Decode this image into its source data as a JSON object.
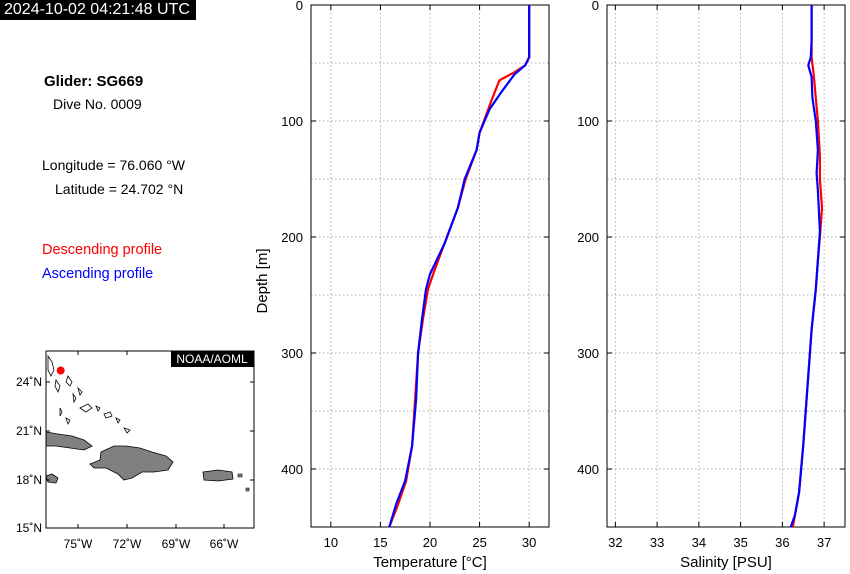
{
  "timestamp": "2024-10-02 04:21:48 UTC",
  "glider": {
    "name": "Glider: SG669",
    "dive": "Dive No. 0009",
    "longitude": "Longitude = 76.060 °W",
    "latitude": "Latitude = 24.702 °N"
  },
  "legend": {
    "descending": "Descending profile",
    "ascending": "Ascending profile",
    "descending_color": "#ff0000",
    "ascending_color": "#0000ff"
  },
  "map": {
    "badge": "NOAA/AOML",
    "lat_ticks": [
      "24˚N",
      "21˚N",
      "18˚N",
      "15˚N"
    ],
    "lon_ticks": [
      "75˚W",
      "72˚W",
      "69˚W",
      "66˚W"
    ],
    "glider_marker": {
      "lon": -76.06,
      "lat": 24.702,
      "color": "#ff0000"
    },
    "land_color": "#808080"
  },
  "chart_data": [
    {
      "type": "line",
      "xlabel": "Temperature [°C]",
      "ylabel": "Depth [m]",
      "xlim": [
        8,
        32
      ],
      "ylim": [
        450,
        0
      ],
      "x_ticks": [
        "10",
        "15",
        "20",
        "25",
        "30"
      ],
      "y_ticks": [
        "0",
        "100",
        "200",
        "300",
        "400"
      ],
      "grid": true,
      "series": [
        {
          "name": "Descending profile",
          "color": "#ff0000",
          "x": [
            30.0,
            30.0,
            30.0,
            29.6,
            28.5,
            27.0,
            26.3,
            25.0,
            24.7,
            23.6,
            22.8,
            21.7,
            20.4,
            19.8,
            19.3,
            18.8,
            18.5,
            18.2,
            17.6,
            16.8,
            15.9
          ],
          "y": [
            0,
            25,
            45,
            52,
            58,
            65,
            80,
            110,
            125,
            150,
            175,
            200,
            230,
            245,
            270,
            300,
            340,
            380,
            410,
            430,
            450
          ]
        },
        {
          "name": "Ascending profile",
          "color": "#0000ff",
          "x": [
            30.0,
            30.0,
            30.0,
            29.6,
            28.5,
            27.2,
            26.0,
            25.0,
            24.7,
            23.5,
            22.8,
            21.5,
            20.0,
            19.6,
            19.2,
            18.8,
            18.6,
            18.2,
            17.5,
            16.6,
            15.9
          ],
          "y": [
            0,
            25,
            45,
            52,
            60,
            75,
            90,
            110,
            125,
            150,
            175,
            205,
            232,
            245,
            270,
            300,
            340,
            380,
            410,
            430,
            450
          ]
        }
      ]
    },
    {
      "type": "line",
      "xlabel": "Salinity [PSU]",
      "ylabel": "",
      "xlim": [
        31.8,
        37.5
      ],
      "ylim": [
        450,
        0
      ],
      "x_ticks": [
        "32",
        "33",
        "34",
        "35",
        "36",
        "37"
      ],
      "y_ticks": [
        "0",
        "100",
        "200",
        "300",
        "400"
      ],
      "grid": true,
      "series": [
        {
          "name": "Descending profile",
          "color": "#ff0000",
          "x": [
            36.7,
            36.7,
            36.7,
            36.75,
            36.8,
            36.85,
            36.9,
            36.9,
            36.95,
            36.9,
            36.85,
            36.8,
            36.7,
            36.6,
            36.5,
            36.4,
            36.3,
            36.25
          ],
          "y": [
            0,
            30,
            45,
            60,
            80,
            100,
            130,
            150,
            175,
            200,
            220,
            245,
            280,
            330,
            380,
            420,
            440,
            450
          ]
        },
        {
          "name": "Ascending profile",
          "color": "#0000ff",
          "x": [
            36.7,
            36.7,
            36.68,
            36.62,
            36.7,
            36.72,
            36.8,
            36.85,
            36.82,
            36.85,
            36.9,
            36.85,
            36.8,
            36.7,
            36.6,
            36.5,
            36.4,
            36.3,
            36.2
          ],
          "y": [
            0,
            30,
            45,
            52,
            62,
            80,
            100,
            125,
            145,
            160,
            195,
            220,
            245,
            280,
            330,
            380,
            420,
            440,
            450
          ]
        }
      ]
    }
  ]
}
